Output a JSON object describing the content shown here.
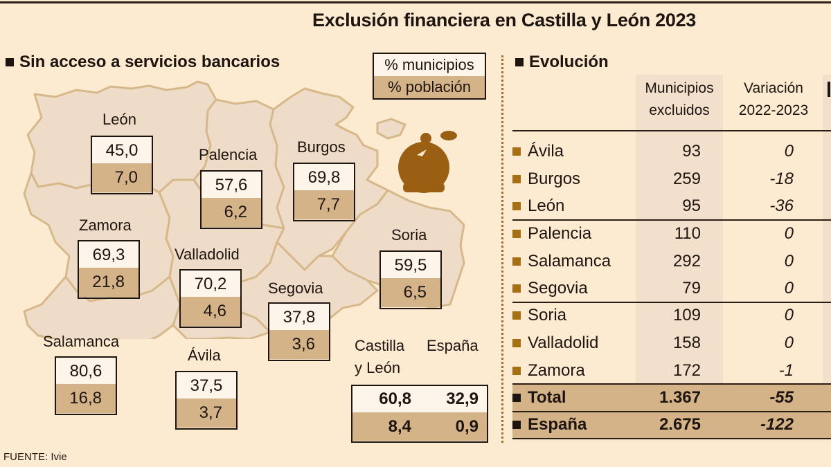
{
  "title": "Exclusión financiera en Castilla y León 2023",
  "map_section": {
    "heading": "Sin acceso a servicios bancarios",
    "legend": {
      "top": "% municipios",
      "bottom": "% población"
    },
    "icon": "piggy-bank-coin-icon",
    "provinces": [
      {
        "name": "León",
        "municipios": "45,0",
        "poblacion": "7,0"
      },
      {
        "name": "Palencia",
        "municipios": "57,6",
        "poblacion": "6,2"
      },
      {
        "name": "Burgos",
        "municipios": "69,8",
        "poblacion": "7,7"
      },
      {
        "name": "Zamora",
        "municipios": "69,3",
        "poblacion": "21,8"
      },
      {
        "name": "Valladolid",
        "municipios": "70,2",
        "poblacion": "4,6"
      },
      {
        "name": "Soria",
        "municipios": "59,5",
        "poblacion": "6,5"
      },
      {
        "name": "Segovia",
        "municipios": "37,8",
        "poblacion": "3,6"
      },
      {
        "name": "Salamanca",
        "municipios": "80,6",
        "poblacion": "16,8"
      },
      {
        "name": "Ávila",
        "municipios": "37,5",
        "poblacion": "3,7"
      }
    ],
    "summary": {
      "cyl_label_line1": "Castilla",
      "cyl_label_line2": "y León",
      "esp_label": "España",
      "cyl_municipios": "60,8",
      "esp_municipios": "32,9",
      "cyl_poblacion": "8,4",
      "esp_poblacion": "0,9"
    }
  },
  "table_section": {
    "heading": "Evolución",
    "col1_line1": "Municipios",
    "col1_line2": "excluidos",
    "col2_line1": "Variación",
    "col2_line2": "2022-2023",
    "rows": [
      {
        "label": "Ávila",
        "municipios": "93",
        "variacion": "0"
      },
      {
        "label": "Burgos",
        "municipios": "259",
        "variacion": "-18"
      },
      {
        "label": "León",
        "municipios": "95",
        "variacion": "-36"
      },
      {
        "label": "Palencia",
        "municipios": "110",
        "variacion": "0"
      },
      {
        "label": "Salamanca",
        "municipios": "292",
        "variacion": "0"
      },
      {
        "label": "Segovia",
        "municipios": "79",
        "variacion": "0"
      },
      {
        "label": "Soria",
        "municipios": "109",
        "variacion": "0"
      },
      {
        "label": "Valladolid",
        "municipios": "158",
        "variacion": "0"
      },
      {
        "label": "Zamora",
        "municipios": "172",
        "variacion": "-1"
      }
    ],
    "total": {
      "label": "Total",
      "municipios": "1.367",
      "variacion": "-55"
    },
    "spain": {
      "label": "España",
      "municipios": "2.675",
      "variacion": "-122"
    }
  },
  "source": "FUENTE: Ivie",
  "colors": {
    "background": "#fdebd1",
    "map_fill": "#efdcc8",
    "map_border": "#d6b88a",
    "poblacion_fill": "#d4b389",
    "municipios_fill": "#fdf4ea",
    "accent": "#a66f14",
    "icon": "#9a5f12"
  },
  "chart_data": {
    "type": "table",
    "title": "Exclusión financiera en Castilla y León 2023",
    "map_series": [
      {
        "name": "% municipios",
        "categories": [
          "León",
          "Palencia",
          "Burgos",
          "Zamora",
          "Valladolid",
          "Soria",
          "Segovia",
          "Salamanca",
          "Ávila"
        ],
        "values": [
          45.0,
          57.6,
          69.8,
          69.3,
          70.2,
          59.5,
          37.8,
          80.6,
          37.5
        ]
      },
      {
        "name": "% población",
        "categories": [
          "León",
          "Palencia",
          "Burgos",
          "Zamora",
          "Valladolid",
          "Soria",
          "Segovia",
          "Salamanca",
          "Ávila"
        ],
        "values": [
          7.0,
          6.2,
          7.7,
          21.8,
          4.6,
          6.5,
          3.6,
          16.8,
          3.7
        ]
      }
    ],
    "totals": {
      "Castilla y León": {
        "municipios": 60.8,
        "poblacion": 8.4
      },
      "España": {
        "municipios": 32.9,
        "poblacion": 0.9
      }
    },
    "evolution": {
      "columns": [
        "Municipios excluidos",
        "Variación 2022-2023"
      ],
      "categories": [
        "Ávila",
        "Burgos",
        "León",
        "Palencia",
        "Salamanca",
        "Segovia",
        "Soria",
        "Valladolid",
        "Zamora",
        "Total",
        "España"
      ],
      "municipios_excluidos": [
        93,
        259,
        95,
        110,
        292,
        79,
        109,
        158,
        172,
        1367,
        2675
      ],
      "variacion": [
        0,
        -18,
        -36,
        0,
        0,
        0,
        0,
        0,
        -1,
        -55,
        -122
      ]
    }
  }
}
